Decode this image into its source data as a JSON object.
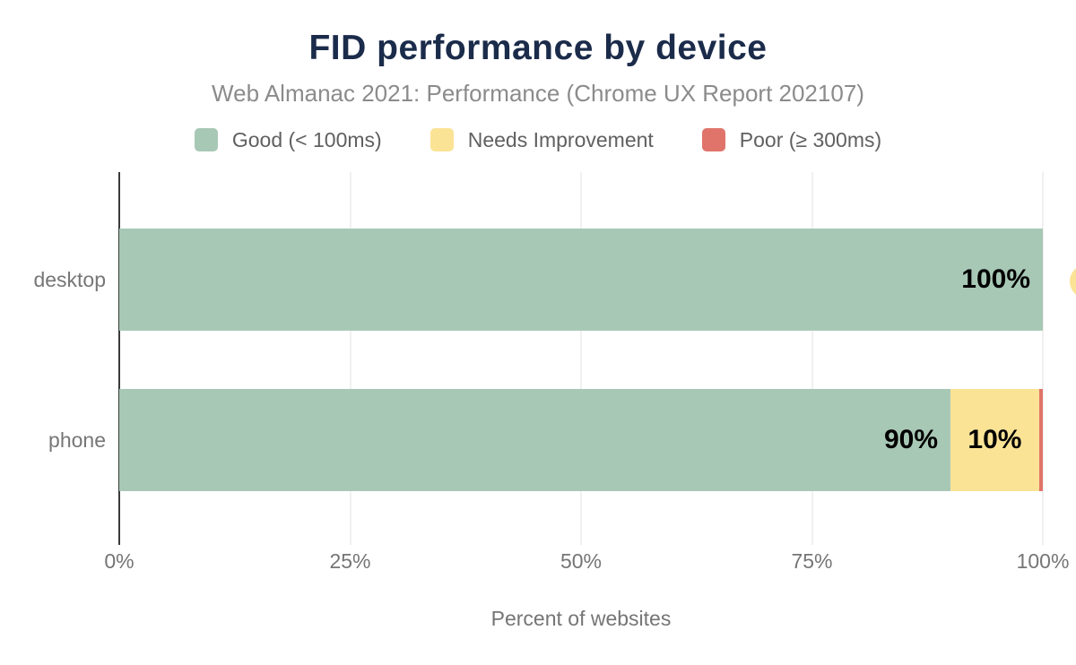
{
  "chart_data": {
    "type": "bar",
    "orientation": "horizontal",
    "stacked": true,
    "title": "FID performance by device",
    "subtitle": "Web Almanac 2021: Performance (Chrome UX Report 202107)",
    "xlabel": "Percent of websites",
    "categories": [
      "desktop",
      "phone"
    ],
    "series": [
      {
        "name": "Good (< 100ms)",
        "color": "#a8c8b6",
        "values": [
          100,
          90
        ],
        "labels": [
          "100%",
          "90%"
        ]
      },
      {
        "name": "Needs Improvement",
        "color": "#fbe396",
        "values": [
          0,
          9.6
        ],
        "labels": [
          "",
          "10%"
        ]
      },
      {
        "name": "Poor (≥ 300ms)",
        "color": "#e0746a",
        "values": [
          0,
          0.4
        ],
        "labels": [
          "",
          ""
        ]
      }
    ],
    "x_ticks": [
      "0%",
      "25%",
      "50%",
      "75%",
      "100%"
    ],
    "xlim": [
      0,
      100
    ],
    "grid": "vertical",
    "legend_position": "top",
    "colors": {
      "title": "#1b2b4a",
      "subtitle": "#8b8b8b",
      "axis_line": "#3a3a3a",
      "gridline": "#f0f0f0",
      "tick_text": "#757575",
      "data_label": "#000000"
    }
  }
}
